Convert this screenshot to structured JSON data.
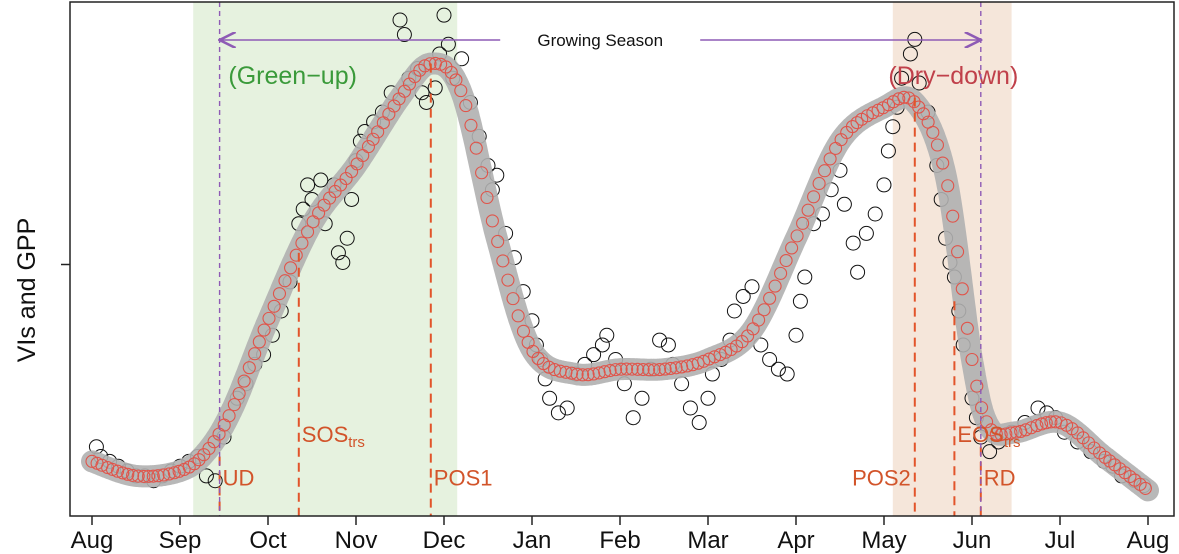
{
  "chart_data": {
    "type": "line",
    "title": "",
    "ylabel": "VIs and GPP",
    "xlabel": "",
    "x_tick_labels": [
      "Aug",
      "Sep",
      "Oct",
      "Nov",
      "Dec",
      "Jan",
      "Feb",
      "Mar",
      "Apr",
      "May",
      "Jun",
      "Jul",
      "Aug"
    ],
    "x_month_range": [
      0,
      12
    ],
    "ylim": [
      0,
      1
    ],
    "y_ticks": [
      0.5
    ],
    "shaded_regions": [
      {
        "name": "green-up",
        "label": "(Green−up)",
        "x_start": 1.15,
        "x_end": 4.15,
        "color": "#e6f2df",
        "label_color": "#3a9a3a"
      },
      {
        "name": "dry-down",
        "label": "(Dry−down)",
        "x_start": 9.1,
        "x_end": 10.45,
        "color": "#f5e6da",
        "label_color": "#c0404a"
      }
    ],
    "growing_season": {
      "label": "Growing Season",
      "x_start": 1.45,
      "x_end": 10.1,
      "color": "#8e5bb5"
    },
    "boundary_lines": [
      1.45,
      10.1
    ],
    "markers": [
      {
        "label": "UD",
        "sub": "",
        "x": 1.45,
        "top": 0.1,
        "label_y": 0.04
      },
      {
        "label": "SOS",
        "sub": "trs",
        "x": 2.35,
        "top": 0.52,
        "label_y": 0.13
      },
      {
        "label": "POS1",
        "sub": "",
        "x": 3.85,
        "top": 0.91,
        "label_y": 0.04
      },
      {
        "label": "POS2",
        "sub": "",
        "x": 9.35,
        "top": 0.84,
        "label_y": 0.04
      },
      {
        "label": "EOS",
        "sub": "trs",
        "x": 9.8,
        "top": 0.42,
        "label_y": 0.13
      },
      {
        "label": "RD",
        "sub": "",
        "x": 10.1,
        "top": 0.12,
        "label_y": 0.04
      }
    ],
    "series": [
      {
        "type": "smooth-curve",
        "x": [
          0,
          0.5,
          1.0,
          1.3,
          1.6,
          2.0,
          2.5,
          3.0,
          3.5,
          3.85,
          4.2,
          4.6,
          5.0,
          5.5,
          6.0,
          6.5,
          7.0,
          7.5,
          8.0,
          8.5,
          9.0,
          9.35,
          9.7,
          10.0,
          10.2,
          10.5,
          11.0,
          11.5,
          12.0
        ],
        "y": [
          0.09,
          0.06,
          0.07,
          0.11,
          0.2,
          0.38,
          0.58,
          0.7,
          0.84,
          0.91,
          0.85,
          0.55,
          0.32,
          0.27,
          0.28,
          0.28,
          0.3,
          0.36,
          0.55,
          0.75,
          0.82,
          0.83,
          0.68,
          0.3,
          0.16,
          0.15,
          0.17,
          0.1,
          0.03
        ],
        "color": "#e0544a",
        "band_color": "#b0b0b0"
      },
      {
        "type": "scatter",
        "x": [
          0.05,
          0.1,
          0.2,
          0.3,
          0.4,
          0.5,
          0.6,
          0.7,
          0.8,
          0.9,
          1.0,
          1.1,
          1.2,
          1.3,
          1.4,
          1.5,
          1.65,
          1.75,
          1.85,
          1.95,
          2.05,
          2.15,
          2.25,
          2.35,
          2.4,
          2.45,
          2.5,
          2.6,
          2.65,
          2.75,
          2.8,
          2.85,
          2.9,
          2.95,
          3.0,
          3.05,
          3.1,
          3.2,
          3.3,
          3.4,
          3.5,
          3.55,
          3.6,
          3.7,
          3.75,
          3.8,
          3.9,
          3.95,
          4.0,
          4.05,
          4.1,
          4.2,
          4.3,
          4.4,
          4.5,
          4.55,
          4.6,
          4.7,
          4.8,
          4.9,
          5.0,
          5.05,
          5.1,
          5.15,
          5.2,
          5.3,
          5.4,
          5.5,
          5.6,
          5.7,
          5.8,
          5.85,
          5.95,
          6.05,
          6.15,
          6.25,
          6.35,
          6.45,
          6.55,
          6.6,
          6.7,
          6.8,
          6.9,
          7.0,
          7.05,
          7.15,
          7.25,
          7.3,
          7.4,
          7.5,
          7.6,
          7.7,
          7.8,
          7.9,
          8.0,
          8.05,
          8.1,
          8.2,
          8.3,
          8.4,
          8.5,
          8.55,
          8.65,
          8.7,
          8.8,
          8.9,
          9.0,
          9.05,
          9.1,
          9.15,
          9.2,
          9.3,
          9.35,
          9.4,
          9.5,
          9.6,
          9.65,
          9.7,
          9.75,
          9.8,
          9.85,
          9.9,
          10.0,
          10.05,
          10.1,
          10.2,
          10.3,
          10.45,
          10.6,
          10.75,
          10.85,
          10.95,
          11.05,
          11.2,
          11.35,
          11.5,
          11.6,
          11.7,
          11.85,
          11.95
        ],
        "y": [
          0.12,
          0.1,
          0.09,
          0.08,
          0.07,
          0.06,
          0.06,
          0.05,
          0.06,
          0.07,
          0.08,
          0.09,
          0.1,
          0.06,
          0.05,
          0.14,
          0.22,
          0.25,
          0.29,
          0.31,
          0.35,
          0.4,
          0.46,
          0.58,
          0.61,
          0.66,
          0.63,
          0.67,
          0.58,
          0.66,
          0.52,
          0.5,
          0.55,
          0.63,
          0.71,
          0.75,
          0.77,
          0.79,
          0.81,
          0.85,
          1.0,
          0.97,
          0.88,
          0.9,
          0.85,
          0.83,
          0.86,
          0.93,
          1.01,
          0.95,
          0.88,
          0.92,
          0.83,
          0.76,
          0.7,
          0.65,
          0.68,
          0.56,
          0.51,
          0.44,
          0.38,
          0.33,
          0.3,
          0.26,
          0.22,
          0.19,
          0.2,
          0.27,
          0.29,
          0.31,
          0.33,
          0.35,
          0.3,
          0.25,
          0.18,
          0.22,
          0.28,
          0.34,
          0.33,
          0.29,
          0.25,
          0.2,
          0.17,
          0.22,
          0.27,
          0.3,
          0.34,
          0.4,
          0.43,
          0.45,
          0.33,
          0.3,
          0.28,
          0.27,
          0.35,
          0.42,
          0.47,
          0.58,
          0.6,
          0.65,
          0.69,
          0.62,
          0.54,
          0.48,
          0.56,
          0.6,
          0.66,
          0.73,
          0.78,
          0.82,
          0.88,
          0.93,
          0.96,
          0.87,
          0.81,
          0.7,
          0.63,
          0.55,
          0.5,
          0.47,
          0.4,
          0.33,
          0.22,
          0.18,
          0.14,
          0.11,
          0.13,
          0.15,
          0.17,
          0.2,
          0.19,
          0.18,
          0.15,
          0.13,
          0.11,
          0.09,
          0.08,
          0.06,
          0.05,
          0.04
        ],
        "color": "#111111"
      }
    ]
  }
}
